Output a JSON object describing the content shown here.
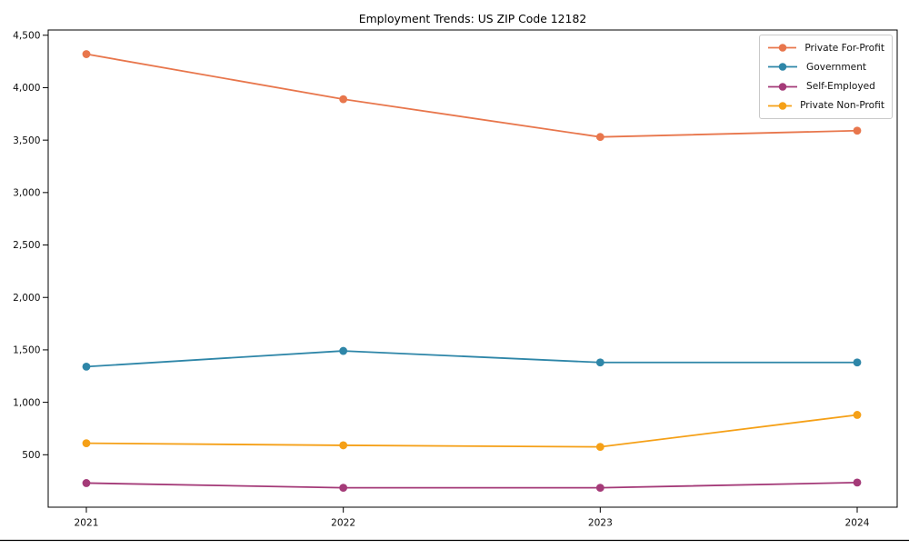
{
  "chart_data": {
    "type": "line",
    "title": "Employment Trends: US ZIP Code 12182",
    "x": [
      2021,
      2022,
      2023,
      2024
    ],
    "x_tick_labels": [
      "2021",
      "2022",
      "2023",
      "2024"
    ],
    "y_ticks": [
      500,
      1000,
      1500,
      2000,
      2500,
      3000,
      3500,
      4000,
      4500
    ],
    "y_tick_labels": [
      "500",
      "1,000",
      "1,500",
      "2,000",
      "2,500",
      "3,000",
      "3,500",
      "4,000",
      "4,500"
    ],
    "ylim": [
      0,
      4550
    ],
    "xlabel": "",
    "ylabel": "",
    "grid": false,
    "legend_position": "upper right",
    "series": [
      {
        "name": "Private For-Profit",
        "color": "#E8764C",
        "values": [
          4320,
          3890,
          3530,
          3590
        ]
      },
      {
        "name": "Government",
        "color": "#2E86A8",
        "values": [
          1340,
          1490,
          1380,
          1380
        ]
      },
      {
        "name": "Self-Employed",
        "color": "#A43A78",
        "values": [
          230,
          185,
          185,
          235
        ]
      },
      {
        "name": "Private Non-Profit",
        "color": "#F5A017",
        "values": [
          610,
          590,
          575,
          880
        ]
      }
    ],
    "style": {
      "spine_color": "#000000",
      "tick_label_color": "#0d0d0d",
      "background": "#ffffff",
      "legend_border_color": "#c9c9c9"
    }
  }
}
